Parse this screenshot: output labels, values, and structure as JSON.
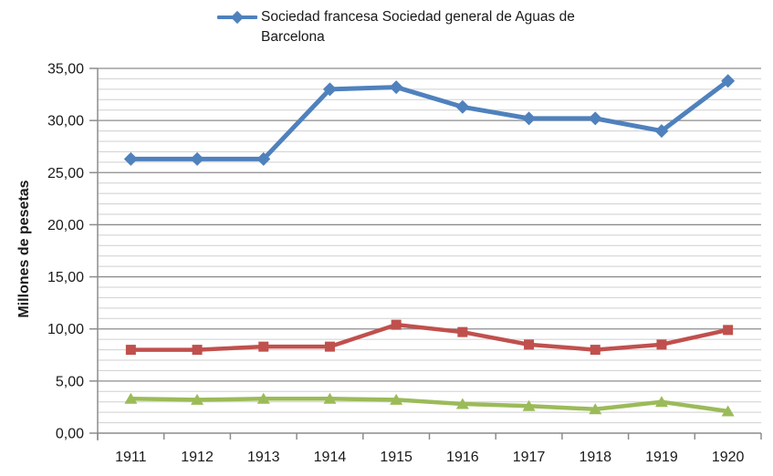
{
  "chart_data": {
    "type": "line",
    "categories": [
      "1911",
      "1912",
      "1913",
      "1914",
      "1915",
      "1916",
      "1917",
      "1918",
      "1919",
      "1920"
    ],
    "series": [
      {
        "name": "Sociedad francesa Sociedad general de Aguas de Barcelona",
        "color": "#4F81BD",
        "marker": "diamond",
        "line_width": 5,
        "in_legend": true,
        "values": [
          26.3,
          26.3,
          26.3,
          33.0,
          33.2,
          31.3,
          30.2,
          30.2,
          29.0,
          33.8
        ]
      },
      {
        "name": "",
        "color": "#C0504D",
        "marker": "square",
        "line_width": 4.5,
        "in_legend": false,
        "values": [
          8.0,
          8.0,
          8.3,
          8.3,
          10.4,
          9.7,
          8.5,
          8.0,
          8.5,
          9.9
        ]
      },
      {
        "name": "",
        "color": "#9BBB59",
        "marker": "triangle",
        "line_width": 4.5,
        "in_legend": false,
        "values": [
          3.3,
          3.2,
          3.3,
          3.3,
          3.2,
          2.8,
          2.6,
          2.3,
          3.0,
          2.1
        ]
      }
    ],
    "title": "",
    "xlabel": "",
    "ylabel": "Millones de pesetas",
    "ylim": [
      0,
      35
    ],
    "y_major_step": 5,
    "y_minor_step": 1,
    "y_tick_labels": [
      "0,00",
      "5,00",
      "10,00",
      "15,00",
      "20,00",
      "25,00",
      "30,00",
      "35,00"
    ],
    "legend_position": "top",
    "grid": "horizontal, minor every 1 (light), major every 5 (dark)"
  },
  "colors": {
    "series_blue": "#4F81BD",
    "series_red": "#C0504D",
    "series_green": "#9BBB59",
    "major_gridline": "#8c8c8c",
    "minor_gridline": "#cfcfcf",
    "axis_line": "#8c8c8c",
    "text": "#1a1a1a"
  }
}
